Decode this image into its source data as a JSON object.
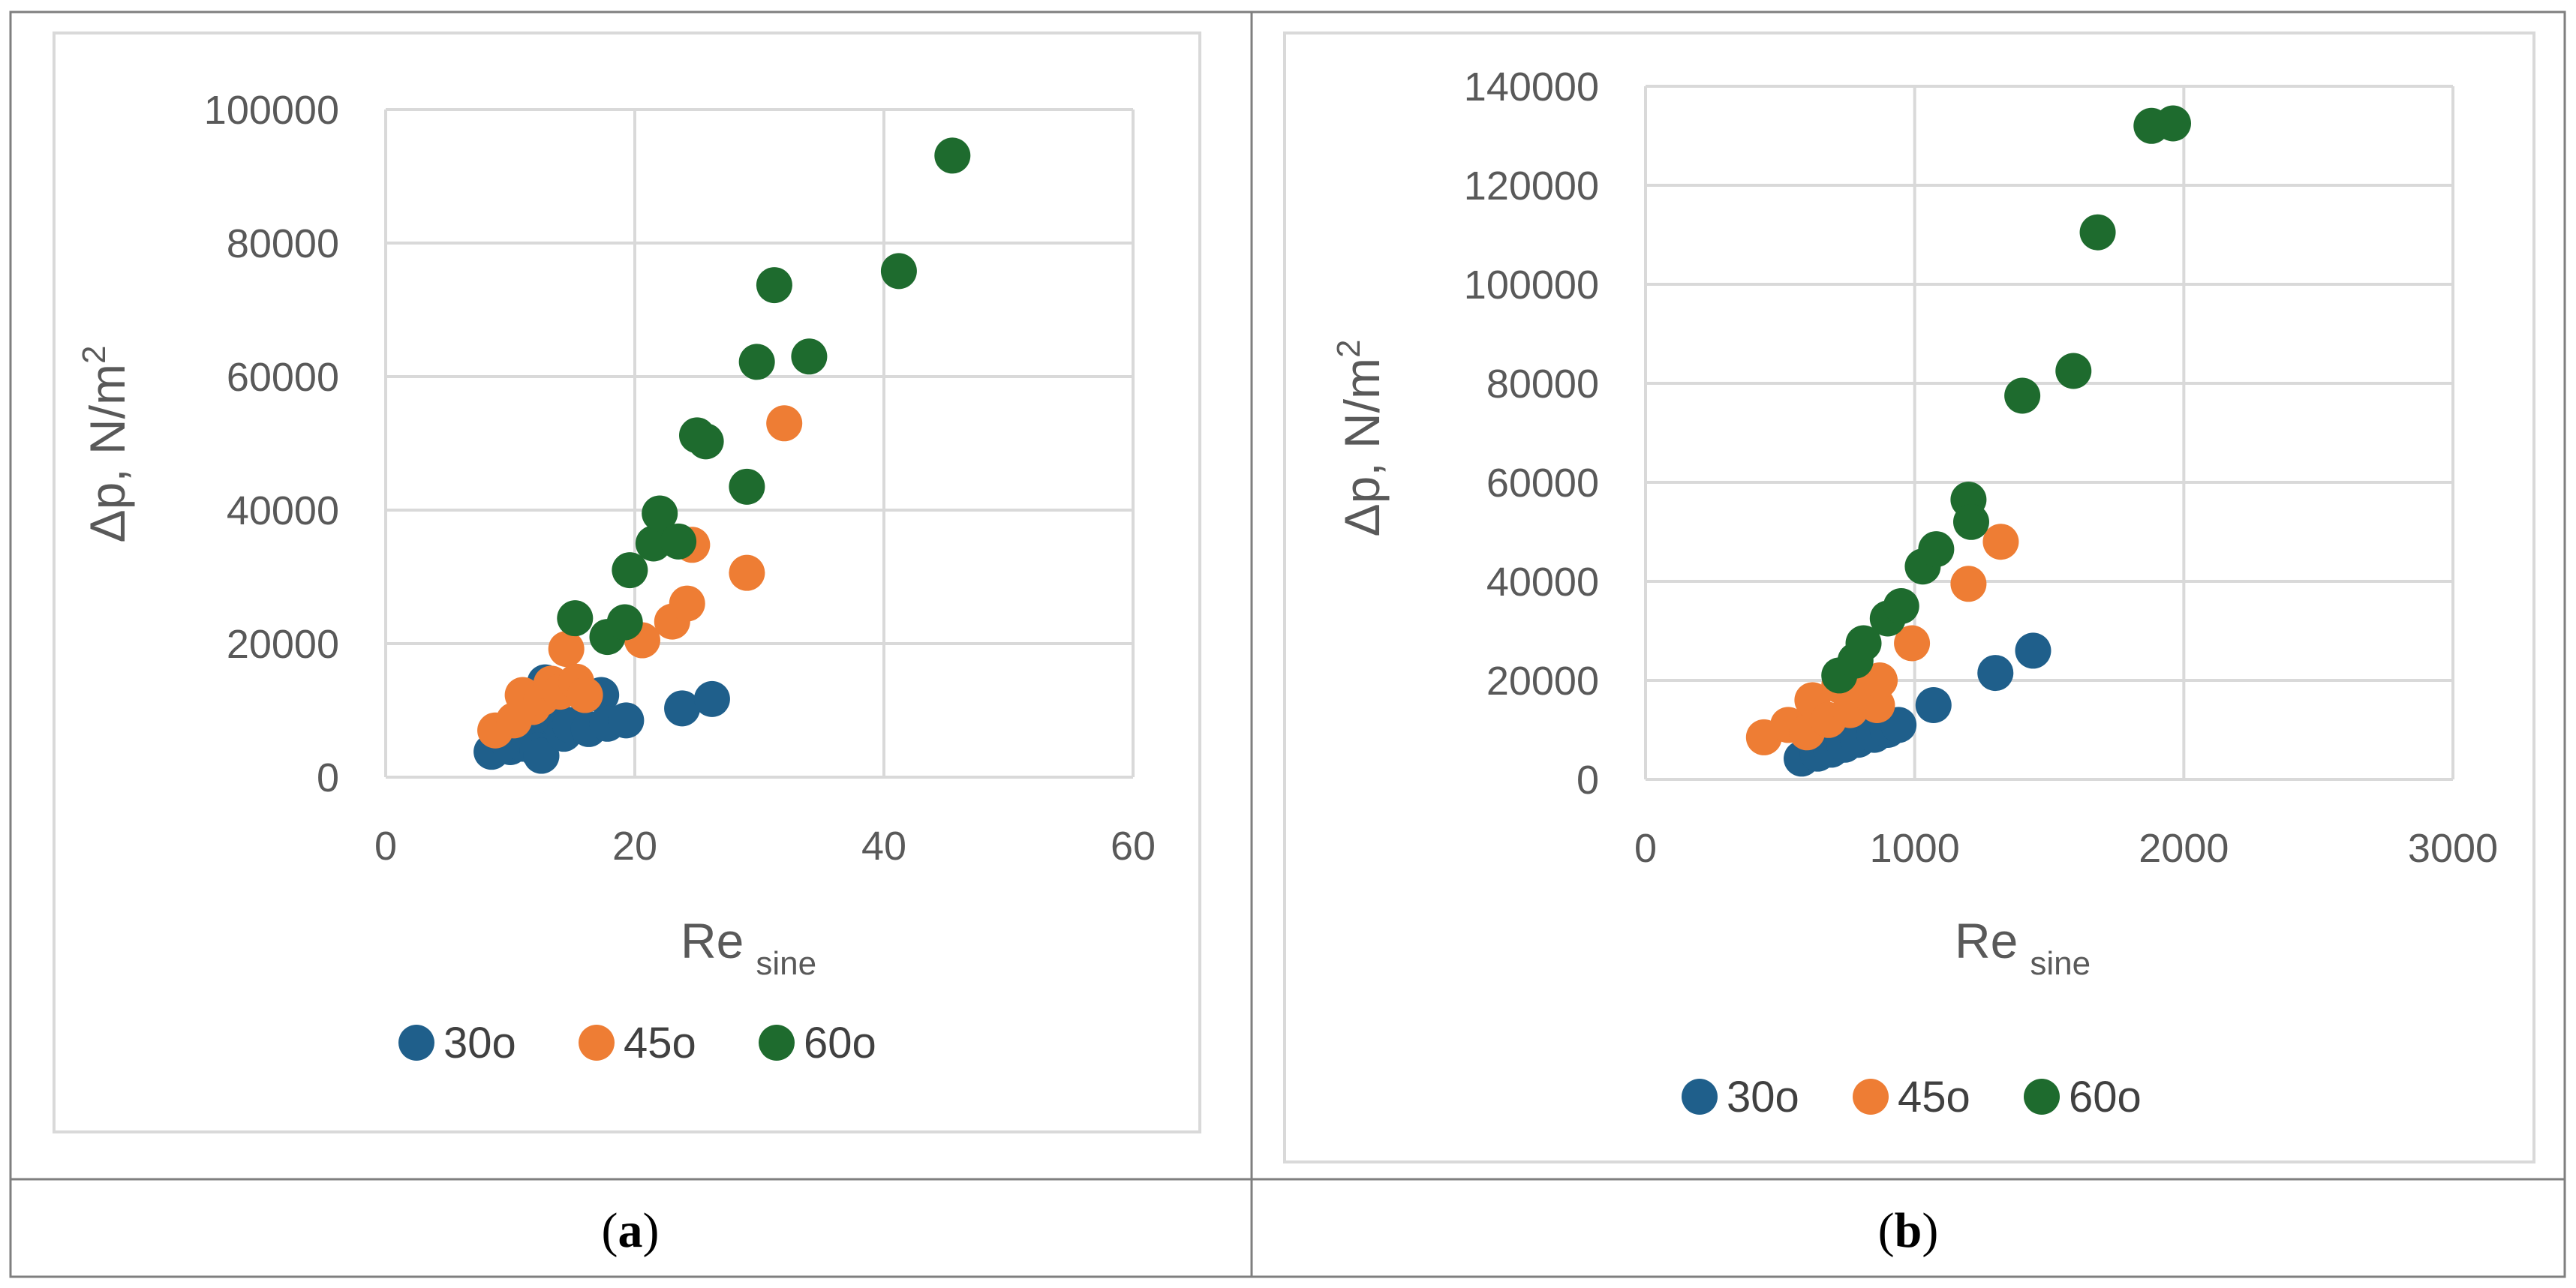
{
  "colors": {
    "s30": "#1f5f8b",
    "s45": "#ee7d34",
    "s60": "#1e6b2e",
    "grid": "#d9d9d9",
    "text": "#595959",
    "frame": "#7f7f7f"
  },
  "captions": {
    "a": "a",
    "b": "b"
  },
  "chart_data": [
    {
      "type": "scatter",
      "panel": "a",
      "title": "",
      "xlabel": {
        "main": "Re",
        "sub": "sine"
      },
      "ylabel": "Δp, N/m",
      "ylabel_sup": "2",
      "xlim": [
        0,
        60
      ],
      "ylim": [
        0,
        100000
      ],
      "xticks": [
        0,
        20,
        40,
        60
      ],
      "yticks": [
        0,
        20000,
        40000,
        60000,
        80000,
        100000
      ],
      "xtick_labels": [
        "0",
        "20",
        "40",
        "60"
      ],
      "ytick_labels": [
        "0",
        "20000",
        "40000",
        "60000",
        "80000",
        "100000"
      ],
      "grid": true,
      "legend_position": "bottom",
      "series": [
        {
          "name": "30o",
          "color_key": "s30",
          "points": [
            [
              8.5,
              3800
            ],
            [
              10,
              4500
            ],
            [
              11,
              5000
            ],
            [
              11.5,
              6000
            ],
            [
              12.2,
              4000
            ],
            [
              12.5,
              3200
            ],
            [
              12.8,
              14200
            ],
            [
              13.3,
              12000
            ],
            [
              13.8,
              8500
            ],
            [
              14.3,
              6500
            ],
            [
              14.8,
              7800
            ],
            [
              16.3,
              7200
            ],
            [
              17.3,
              12300
            ],
            [
              17.8,
              8000
            ],
            [
              19.3,
              8500
            ],
            [
              23.8,
              10300
            ],
            [
              26.2,
              11700
            ]
          ]
        },
        {
          "name": "45o",
          "color_key": "s45",
          "points": [
            [
              8.8,
              7000
            ],
            [
              10.3,
              8500
            ],
            [
              11,
              12300
            ],
            [
              11.8,
              10500
            ],
            [
              12.5,
              11800
            ],
            [
              13.3,
              14000
            ],
            [
              14,
              12800
            ],
            [
              14.5,
              19200
            ],
            [
              15.3,
              14300
            ],
            [
              16,
              12300
            ],
            [
              20.6,
              20500
            ],
            [
              23,
              23300
            ],
            [
              24.2,
              26000
            ],
            [
              24.6,
              34800
            ],
            [
              29,
              30600
            ],
            [
              32,
              53000
            ]
          ]
        },
        {
          "name": "60o",
          "color_key": "s60",
          "points": [
            [
              15.2,
              23800
            ],
            [
              17.8,
              21000
            ],
            [
              19.2,
              23200
            ],
            [
              19.6,
              31000
            ],
            [
              21.5,
              35000
            ],
            [
              22,
              39500
            ],
            [
              23.5,
              35300
            ],
            [
              25,
              51200
            ],
            [
              25.7,
              50300
            ],
            [
              29,
              43500
            ],
            [
              29.8,
              62200
            ],
            [
              31.2,
              73700
            ],
            [
              34,
              63000
            ],
            [
              41.2,
              75800
            ],
            [
              45.5,
              93100
            ]
          ]
        }
      ]
    },
    {
      "type": "scatter",
      "panel": "b",
      "title": "",
      "xlabel": {
        "main": "Re",
        "sub": "sine"
      },
      "ylabel": "Δp, N/m",
      "ylabel_sup": "2",
      "xlim": [
        0,
        3000
      ],
      "ylim": [
        0,
        140000
      ],
      "xticks": [
        0,
        1000,
        2000,
        3000
      ],
      "yticks": [
        0,
        20000,
        40000,
        60000,
        80000,
        100000,
        120000,
        140000
      ],
      "xtick_labels": [
        "0",
        "1000",
        "2000",
        "3000"
      ],
      "ytick_labels": [
        "0",
        "20000",
        "40000",
        "60000",
        "80000",
        "100000",
        "120000",
        "140000"
      ],
      "grid": true,
      "legend_position": "bottom",
      "series": [
        {
          "name": "30o",
          "color_key": "s30",
          "points": [
            [
              580,
              4200
            ],
            [
              640,
              5200
            ],
            [
              690,
              6000
            ],
            [
              740,
              7000
            ],
            [
              790,
              8000
            ],
            [
              850,
              9000
            ],
            [
              900,
              10000
            ],
            [
              940,
              11000
            ],
            [
              1070,
              15000
            ],
            [
              1300,
              21500
            ],
            [
              1440,
              26000
            ]
          ]
        },
        {
          "name": "45o",
          "color_key": "s45",
          "points": [
            [
              440,
              8500
            ],
            [
              530,
              11000
            ],
            [
              600,
              9500
            ],
            [
              620,
              16000
            ],
            [
              680,
              12000
            ],
            [
              720,
              19000
            ],
            [
              760,
              14000
            ],
            [
              800,
              18000
            ],
            [
              860,
              15000
            ],
            [
              870,
              20000
            ],
            [
              990,
              27500
            ],
            [
              1200,
              39500
            ],
            [
              1320,
              48000
            ]
          ]
        },
        {
          "name": "60o",
          "color_key": "s60",
          "points": [
            [
              720,
              21000
            ],
            [
              780,
              24000
            ],
            [
              810,
              27500
            ],
            [
              900,
              32500
            ],
            [
              950,
              35000
            ],
            [
              1030,
              43000
            ],
            [
              1080,
              46500
            ],
            [
              1200,
              56500
            ],
            [
              1210,
              52000
            ],
            [
              1400,
              77500
            ],
            [
              1590,
              82500
            ],
            [
              1680,
              110500
            ],
            [
              1880,
              132000
            ],
            [
              1960,
              132500
            ]
          ]
        }
      ]
    }
  ]
}
